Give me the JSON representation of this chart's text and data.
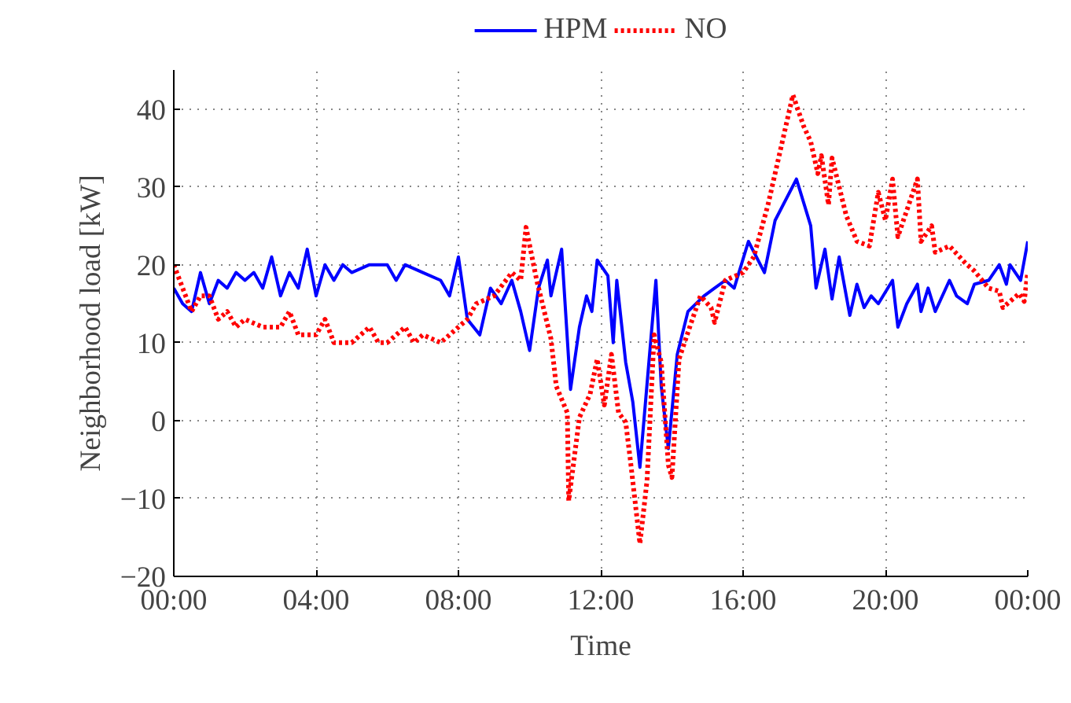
{
  "chart_data": {
    "type": "line",
    "xlabel": "Time",
    "ylabel": "Neighborhood load [kW]",
    "xlim": [
      0,
      24
    ],
    "ylim": [
      -20,
      45
    ],
    "xticks": [
      {
        "value": 0,
        "label": "00:00"
      },
      {
        "value": 4,
        "label": "04:00"
      },
      {
        "value": 8,
        "label": "08:00"
      },
      {
        "value": 12,
        "label": "12:00"
      },
      {
        "value": 16,
        "label": "16:00"
      },
      {
        "value": 20,
        "label": "20:00"
      },
      {
        "value": 24,
        "label": "00:00"
      }
    ],
    "yticks": [
      {
        "value": -20,
        "label": "−20"
      },
      {
        "value": -10,
        "label": "−10"
      },
      0,
      10,
      20,
      30,
      40
    ],
    "grid": true,
    "legend": "top",
    "series": [
      {
        "name": "HPM",
        "color": "#0000ff",
        "line_style": "solid",
        "x": [
          0,
          0.25,
          0.5,
          0.75,
          1,
          1.25,
          1.5,
          1.75,
          2,
          2.25,
          2.5,
          2.75,
          3,
          3.25,
          3.5,
          3.75,
          4,
          4.25,
          4.5,
          4.75,
          5,
          5.5,
          6,
          6.25,
          6.5,
          7,
          7.5,
          7.75,
          8,
          8.25,
          8.6,
          8.9,
          9.2,
          9.5,
          9.75,
          10,
          10.25,
          10.5,
          10.6,
          10.9,
          11.15,
          11.4,
          11.6,
          11.75,
          11.9,
          12.2,
          12.35,
          12.45,
          12.7,
          12.9,
          13.1,
          13.55,
          13.7,
          13.9,
          14.15,
          14.45,
          14.9,
          15.2,
          15.5,
          15.75,
          16.15,
          16.6,
          16.9,
          17.5,
          17.7,
          17.9,
          18.05,
          18.3,
          18.5,
          18.7,
          19.0,
          19.2,
          19.4,
          19.6,
          19.8,
          20.2,
          20.35,
          20.6,
          20.9,
          21.0,
          21.2,
          21.4,
          21.8,
          22.0,
          22.3,
          22.5,
          22.9,
          23.2,
          23.4,
          23.5,
          23.8,
          24
        ],
        "values": [
          17,
          15,
          14,
          19,
          15,
          18,
          17,
          19,
          18,
          19,
          17,
          21,
          16,
          19,
          17,
          22,
          16,
          20,
          18,
          20,
          19,
          20,
          20,
          18,
          20,
          19,
          18,
          16,
          21,
          13,
          11,
          17,
          15,
          18,
          14,
          9,
          17,
          20.6,
          16,
          22,
          4,
          12,
          16,
          14,
          20.6,
          18.6,
          10,
          18,
          7.5,
          2.4,
          -6,
          18,
          4.4,
          -3.6,
          8.5,
          14,
          16,
          17,
          18,
          17,
          23,
          19,
          25.7,
          31,
          28,
          25,
          17,
          22,
          15.6,
          21,
          13.5,
          17.5,
          14.5,
          16,
          15,
          18,
          12,
          15,
          17.5,
          14,
          17,
          14,
          18,
          16,
          15,
          17.5,
          18,
          20,
          17.5,
          20,
          18,
          23
        ]
      },
      {
        "name": "NO",
        "color": "#ff0000",
        "line_style": "dotted",
        "x": [
          0,
          0.25,
          0.5,
          0.75,
          1,
          1.25,
          1.5,
          1.75,
          2,
          2.5,
          3,
          3.25,
          3.5,
          4,
          4.25,
          4.5,
          5,
          5.5,
          5.75,
          6,
          6.5,
          6.75,
          7,
          7.5,
          8,
          8.25,
          8.5,
          9,
          9.5,
          9.75,
          9.9,
          10.2,
          10.6,
          10.75,
          11.06,
          11.1,
          11.4,
          11.7,
          11.9,
          12.1,
          12.3,
          12.5,
          12.7,
          12.83,
          13.1,
          13.3,
          13.5,
          13.7,
          13.9,
          14.0,
          14.2,
          14.5,
          14.8,
          15.1,
          15.2,
          15.5,
          16.0,
          16.3,
          16.7,
          17.4,
          17.7,
          17.9,
          18.1,
          18.2,
          18.4,
          18.5,
          18.9,
          19.2,
          19.55,
          19.8,
          20.0,
          20.2,
          20.35,
          20.9,
          21.0,
          21.3,
          21.4,
          21.8,
          22.25,
          22.5,
          22.9,
          23.2,
          23.3,
          23.76,
          23.9,
          24
        ],
        "values": [
          20,
          17,
          14,
          16,
          16,
          13,
          14,
          12,
          13,
          12,
          12,
          14,
          11,
          11,
          13,
          10,
          10,
          12,
          10,
          10,
          12,
          10,
          11,
          10,
          12,
          13,
          15,
          16,
          19,
          18,
          24.8,
          18,
          10.5,
          4.4,
          1,
          -10.3,
          0.4,
          3.4,
          7.9,
          2,
          8.5,
          1,
          -0.2,
          -5,
          -15.8,
          -7.7,
          11,
          7.5,
          -5.7,
          -7.3,
          7.9,
          12,
          16,
          14.5,
          12.6,
          18,
          19,
          21,
          27.7,
          41.8,
          37.8,
          35.8,
          31.7,
          34,
          27.7,
          33.7,
          26.3,
          23,
          22.4,
          29.3,
          25.7,
          31,
          23.6,
          31,
          23,
          25,
          21.6,
          22.4,
          20.2,
          19.2,
          17,
          16.6,
          14.5,
          16.3,
          15.3,
          19
        ]
      }
    ]
  }
}
